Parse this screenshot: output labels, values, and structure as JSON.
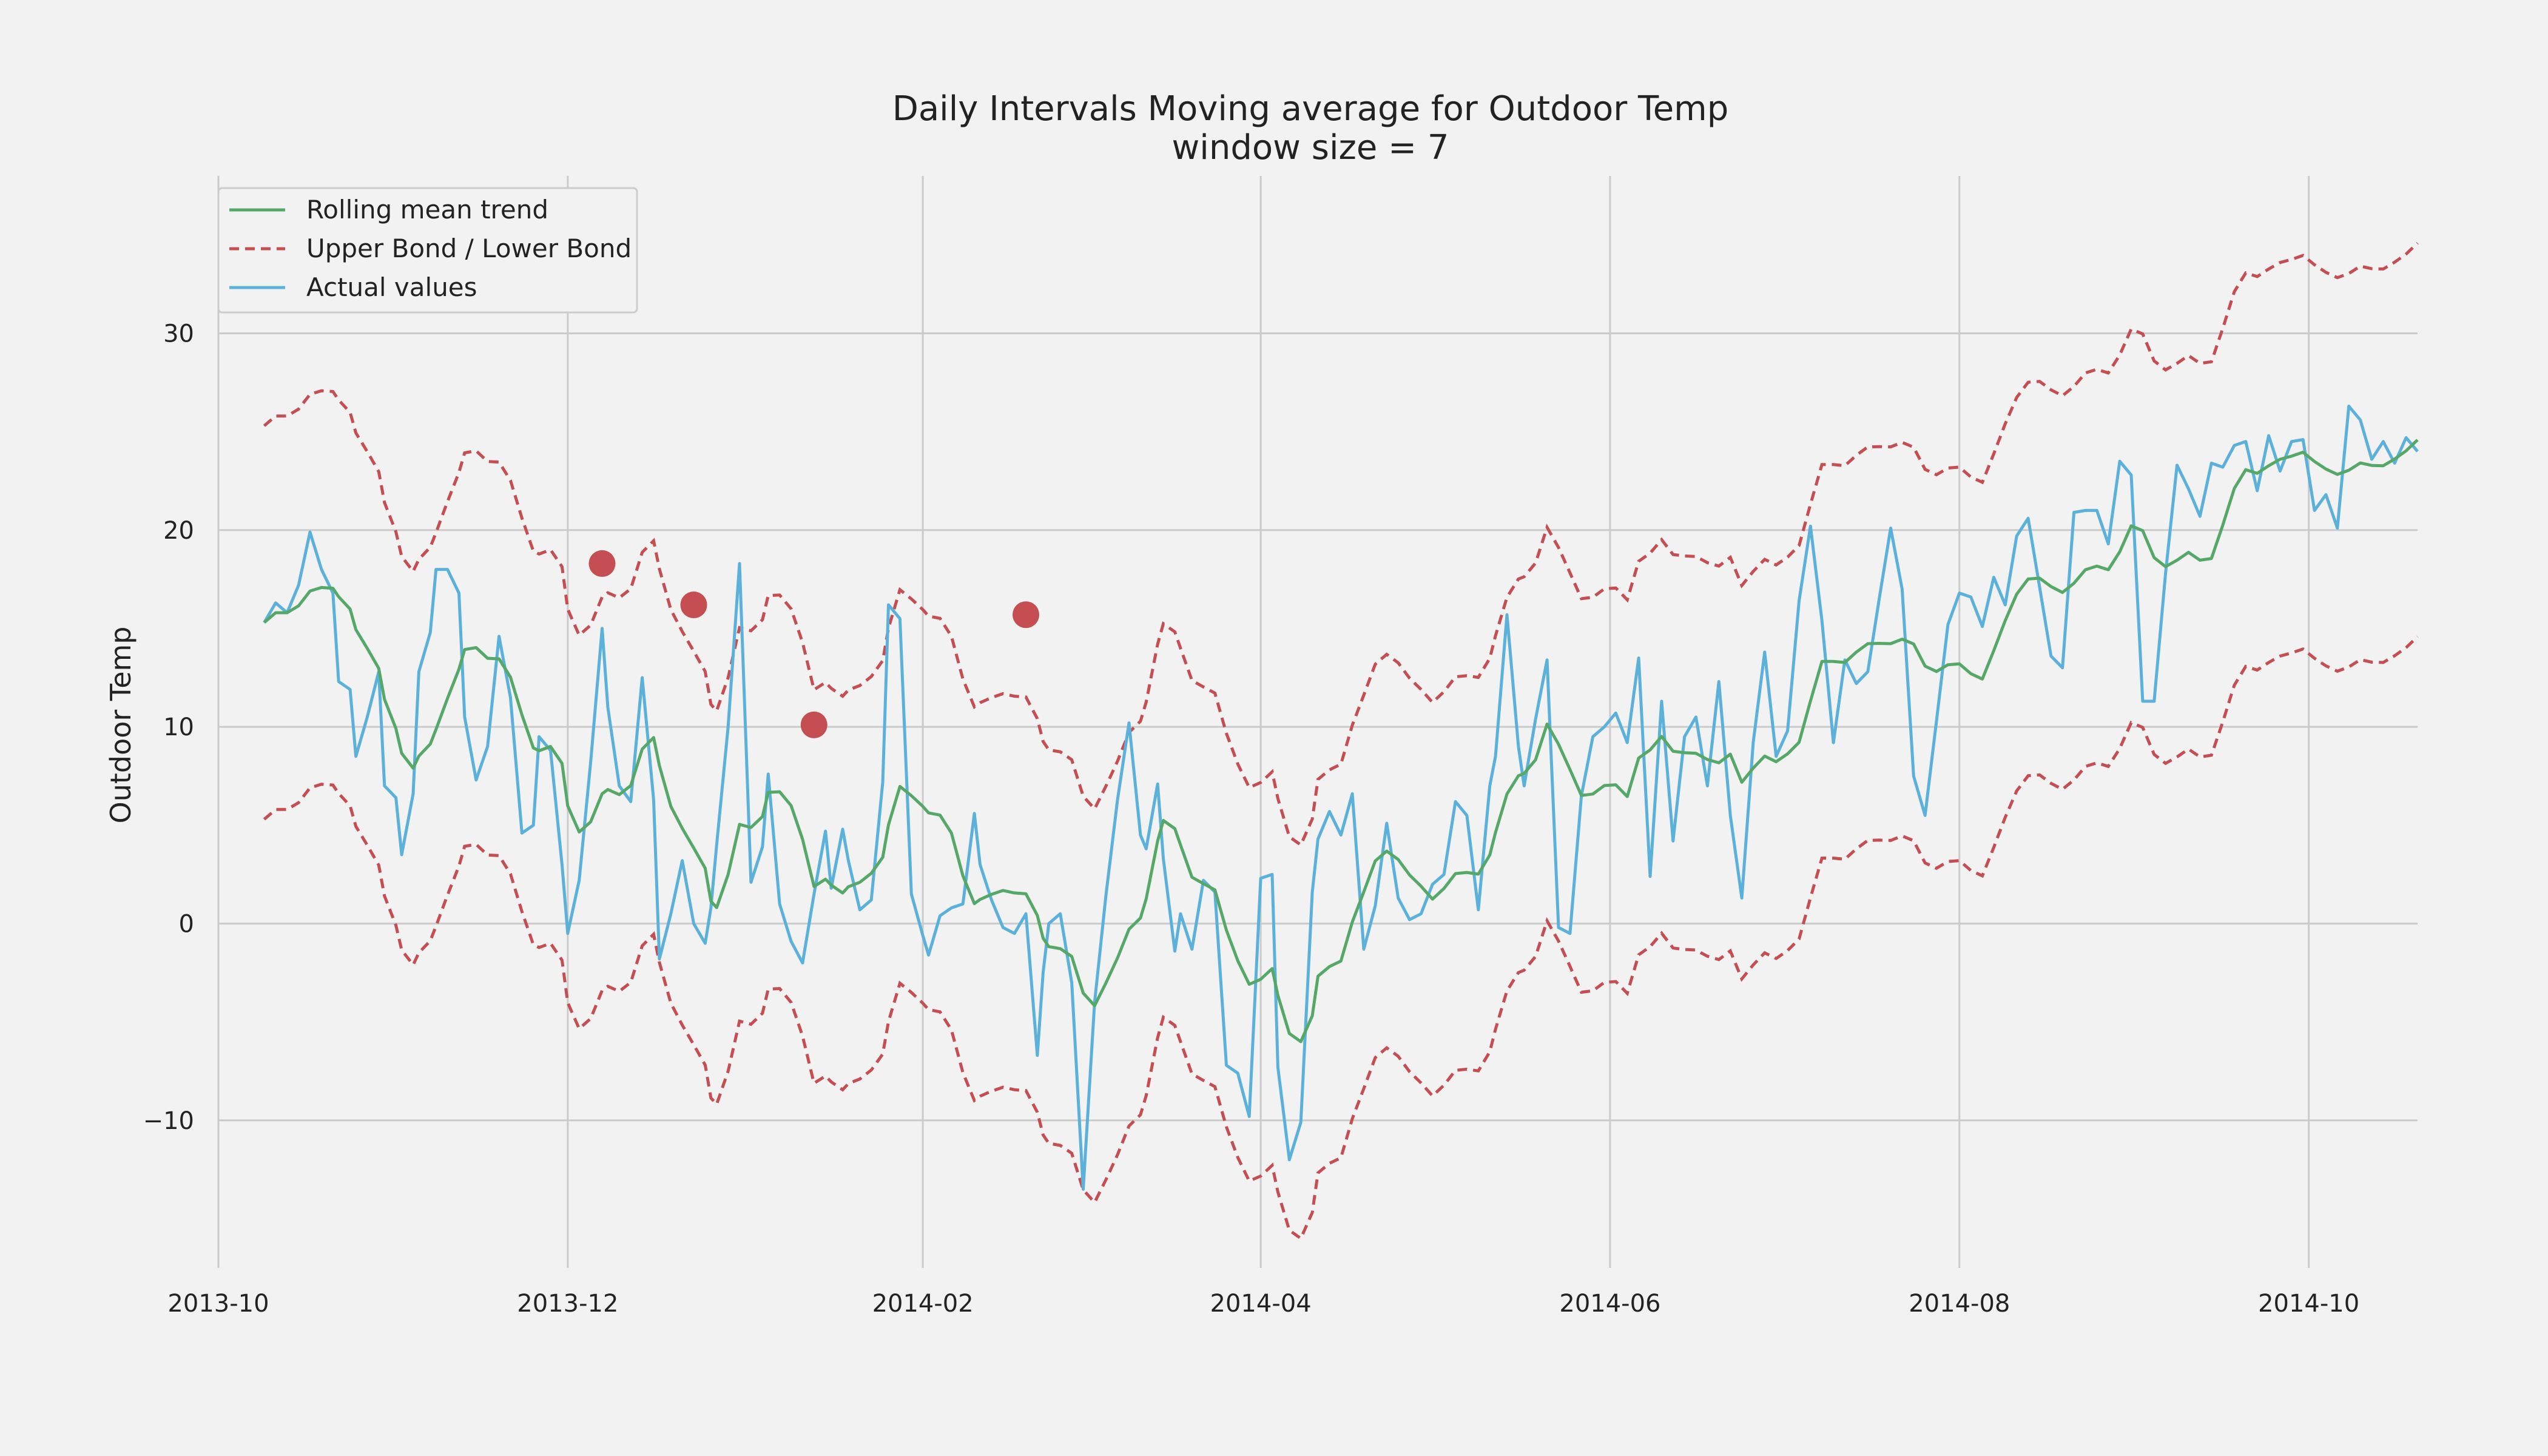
{
  "chart_data": {
    "type": "line",
    "title": [
      "Daily Intervals Moving average for Outdoor Temp",
      "window size = 7"
    ],
    "xlabel": "",
    "ylabel": "Outdoor Temp",
    "xlim": [
      "2013-10-01",
      "2014-10-20"
    ],
    "ylim": [
      -17.5,
      38
    ],
    "x_ticks": [
      "2013-10",
      "2013-12",
      "2014-02",
      "2014-04",
      "2014-06",
      "2014-08",
      "2014-10"
    ],
    "y_ticks": [
      -10,
      0,
      10,
      20,
      30
    ],
    "y_tick_labels": [
      "−10",
      "0",
      "10",
      "20",
      "30"
    ],
    "grid": true,
    "legend": {
      "placement": "top-left",
      "entries": [
        "Rolling mean trend",
        "Upper Bond / Lower Bond",
        "Actual values"
      ]
    },
    "colors": {
      "rolling": "#55a868",
      "bounds": "#c44e52",
      "actual": "#5bb1d9",
      "anomaly": "#c44e52",
      "background": "#f2f2f2",
      "grid": "#cbcbcb"
    },
    "series": [
      {
        "name": "Actual values",
        "style": "solid",
        "points": [
          [
            "2013-10-09",
            15.3
          ],
          [
            "2013-10-11",
            16.3
          ],
          [
            "2013-10-13",
            15.8
          ],
          [
            "2013-10-15",
            17.2
          ],
          [
            "2013-10-17",
            19.9
          ],
          [
            "2013-10-19",
            18.0
          ],
          [
            "2013-10-21",
            16.8
          ],
          [
            "2013-10-22",
            12.3
          ],
          [
            "2013-10-24",
            11.9
          ],
          [
            "2013-10-25",
            8.5
          ],
          [
            "2013-10-27",
            10.5
          ],
          [
            "2013-10-29",
            12.8
          ],
          [
            "2013-10-30",
            7.0
          ],
          [
            "2013-11-01",
            6.4
          ],
          [
            "2013-11-02",
            3.5
          ],
          [
            "2013-11-04",
            6.6
          ],
          [
            "2013-11-05",
            12.8
          ],
          [
            "2013-11-07",
            14.8
          ],
          [
            "2013-11-08",
            18.0
          ],
          [
            "2013-11-10",
            18.0
          ],
          [
            "2013-11-12",
            16.8
          ],
          [
            "2013-11-13",
            10.5
          ],
          [
            "2013-11-15",
            7.3
          ],
          [
            "2013-11-17",
            9.0
          ],
          [
            "2013-11-19",
            14.6
          ],
          [
            "2013-11-21",
            11.5
          ],
          [
            "2013-11-23",
            4.6
          ],
          [
            "2013-11-25",
            5.0
          ],
          [
            "2013-11-26",
            9.5
          ],
          [
            "2013-11-28",
            8.8
          ],
          [
            "2013-11-30",
            3.0
          ],
          [
            "2013-12-01",
            -0.5
          ],
          [
            "2013-12-03",
            2.2
          ],
          [
            "2013-12-05",
            8.2
          ],
          [
            "2013-12-07",
            15.0
          ],
          [
            "2013-12-08",
            11.0
          ],
          [
            "2013-12-10",
            7.0
          ],
          [
            "2013-12-12",
            6.2
          ],
          [
            "2013-12-14",
            12.5
          ],
          [
            "2013-12-16",
            6.3
          ],
          [
            "2013-12-17",
            -1.8
          ],
          [
            "2013-12-19",
            0.5
          ],
          [
            "2013-12-21",
            3.2
          ],
          [
            "2013-12-23",
            0.0
          ],
          [
            "2013-12-25",
            -1.0
          ],
          [
            "2013-12-26",
            0.8
          ],
          [
            "2013-12-27",
            4.0
          ],
          [
            "2013-12-29",
            10.0
          ],
          [
            "2013-12-31",
            18.3
          ],
          [
            "2014-01-02",
            2.1
          ],
          [
            "2014-01-04",
            3.9
          ],
          [
            "2014-01-05",
            7.6
          ],
          [
            "2014-01-07",
            1.0
          ],
          [
            "2014-01-09",
            -0.9
          ],
          [
            "2014-01-11",
            -2.0
          ],
          [
            "2014-01-13",
            1.5
          ],
          [
            "2014-01-15",
            4.7
          ],
          [
            "2014-01-16",
            1.8
          ],
          [
            "2014-01-18",
            4.8
          ],
          [
            "2014-01-19",
            3.2
          ],
          [
            "2014-01-21",
            0.7
          ],
          [
            "2014-01-23",
            1.2
          ],
          [
            "2014-01-25",
            7.2
          ],
          [
            "2014-01-26",
            16.2
          ],
          [
            "2014-01-28",
            15.5
          ],
          [
            "2014-01-30",
            1.5
          ],
          [
            "2014-02-01",
            -0.6
          ],
          [
            "2014-02-02",
            -1.6
          ],
          [
            "2014-02-04",
            0.4
          ],
          [
            "2014-02-06",
            0.8
          ],
          [
            "2014-02-08",
            1.0
          ],
          [
            "2014-02-10",
            5.6
          ],
          [
            "2014-02-11",
            3.0
          ],
          [
            "2014-02-13",
            1.2
          ],
          [
            "2014-02-15",
            -0.2
          ],
          [
            "2014-02-17",
            -0.5
          ],
          [
            "2014-02-19",
            0.5
          ],
          [
            "2014-02-21",
            -6.7
          ],
          [
            "2014-02-22",
            -2.5
          ],
          [
            "2014-02-23",
            0.0
          ],
          [
            "2014-02-25",
            0.5
          ],
          [
            "2014-02-27",
            -3.0
          ],
          [
            "2014-03-01",
            -13.5
          ],
          [
            "2014-03-03",
            -4.0
          ],
          [
            "2014-03-05",
            1.5
          ],
          [
            "2014-03-07",
            6.3
          ],
          [
            "2014-03-09",
            10.2
          ],
          [
            "2014-03-11",
            4.5
          ],
          [
            "2014-03-12",
            3.8
          ],
          [
            "2014-03-14",
            7.1
          ],
          [
            "2014-03-15",
            3.3
          ],
          [
            "2014-03-17",
            -1.4
          ],
          [
            "2014-03-18",
            0.5
          ],
          [
            "2014-03-20",
            -1.3
          ],
          [
            "2014-03-22",
            2.2
          ],
          [
            "2014-03-24",
            1.6
          ],
          [
            "2014-03-26",
            -7.2
          ],
          [
            "2014-03-28",
            -7.6
          ],
          [
            "2014-03-30",
            -9.8
          ],
          [
            "2014-04-01",
            2.3
          ],
          [
            "2014-04-03",
            2.5
          ],
          [
            "2014-04-04",
            -7.3
          ],
          [
            "2014-04-06",
            -12.0
          ],
          [
            "2014-04-08",
            -10.1
          ],
          [
            "2014-04-10",
            1.6
          ],
          [
            "2014-04-11",
            4.3
          ],
          [
            "2014-04-13",
            5.7
          ],
          [
            "2014-04-15",
            4.5
          ],
          [
            "2014-04-17",
            6.6
          ],
          [
            "2014-04-19",
            -1.3
          ],
          [
            "2014-04-21",
            0.9
          ],
          [
            "2014-04-23",
            5.1
          ],
          [
            "2014-04-25",
            1.3
          ],
          [
            "2014-04-27",
            0.2
          ],
          [
            "2014-04-29",
            0.5
          ],
          [
            "2014-05-01",
            2.0
          ],
          [
            "2014-05-03",
            2.5
          ],
          [
            "2014-05-05",
            6.2
          ],
          [
            "2014-05-07",
            5.5
          ],
          [
            "2014-05-09",
            0.7
          ],
          [
            "2014-05-11",
            7.0
          ],
          [
            "2014-05-12",
            8.5
          ],
          [
            "2014-05-14",
            15.7
          ],
          [
            "2014-05-16",
            9.0
          ],
          [
            "2014-05-17",
            7.0
          ],
          [
            "2014-05-19",
            10.4
          ],
          [
            "2014-05-21",
            13.4
          ],
          [
            "2014-05-23",
            -0.2
          ],
          [
            "2014-05-25",
            -0.5
          ],
          [
            "2014-05-27",
            6.5
          ],
          [
            "2014-05-29",
            9.5
          ],
          [
            "2014-05-31",
            10.0
          ],
          [
            "2014-06-02",
            10.7
          ],
          [
            "2014-06-04",
            9.2
          ],
          [
            "2014-06-06",
            13.5
          ],
          [
            "2014-06-08",
            2.4
          ],
          [
            "2014-06-10",
            11.3
          ],
          [
            "2014-06-12",
            4.2
          ],
          [
            "2014-06-14",
            9.5
          ],
          [
            "2014-06-16",
            10.5
          ],
          [
            "2014-06-18",
            7.0
          ],
          [
            "2014-06-20",
            12.3
          ],
          [
            "2014-06-22",
            5.5
          ],
          [
            "2014-06-24",
            1.3
          ],
          [
            "2014-06-26",
            9.2
          ],
          [
            "2014-06-28",
            13.8
          ],
          [
            "2014-06-30",
            8.5
          ],
          [
            "2014-07-02",
            9.8
          ],
          [
            "2014-07-04",
            16.4
          ],
          [
            "2014-07-06",
            20.2
          ],
          [
            "2014-07-08",
            15.4
          ],
          [
            "2014-07-10",
            9.2
          ],
          [
            "2014-07-12",
            13.4
          ],
          [
            "2014-07-14",
            12.2
          ],
          [
            "2014-07-16",
            12.8
          ],
          [
            "2014-07-18",
            16.5
          ],
          [
            "2014-07-20",
            20.1
          ],
          [
            "2014-07-22",
            17.0
          ],
          [
            "2014-07-24",
            7.5
          ],
          [
            "2014-07-26",
            5.5
          ],
          [
            "2014-07-28",
            10.3
          ],
          [
            "2014-07-30",
            15.2
          ],
          [
            "2014-08-01",
            16.8
          ],
          [
            "2014-08-03",
            16.6
          ],
          [
            "2014-08-05",
            15.1
          ],
          [
            "2014-08-07",
            17.6
          ],
          [
            "2014-08-09",
            16.2
          ],
          [
            "2014-08-11",
            19.7
          ],
          [
            "2014-08-13",
            20.6
          ],
          [
            "2014-08-15",
            17.1
          ],
          [
            "2014-08-17",
            13.6
          ],
          [
            "2014-08-19",
            13.0
          ],
          [
            "2014-08-21",
            20.9
          ],
          [
            "2014-08-23",
            21.0
          ],
          [
            "2014-08-25",
            21.0
          ],
          [
            "2014-08-27",
            19.3
          ],
          [
            "2014-08-29",
            23.5
          ],
          [
            "2014-08-31",
            22.8
          ],
          [
            "2014-09-02",
            11.3
          ],
          [
            "2014-09-04",
            11.3
          ],
          [
            "2014-09-06",
            17.8
          ],
          [
            "2014-09-08",
            23.3
          ],
          [
            "2014-09-10",
            22.1
          ],
          [
            "2014-09-12",
            20.7
          ],
          [
            "2014-09-14",
            23.4
          ],
          [
            "2014-09-16",
            23.2
          ],
          [
            "2014-09-18",
            24.3
          ],
          [
            "2014-09-20",
            24.5
          ],
          [
            "2014-09-22",
            22.0
          ],
          [
            "2014-09-24",
            24.8
          ],
          [
            "2014-09-26",
            23.0
          ],
          [
            "2014-09-28",
            24.5
          ],
          [
            "2014-09-30",
            24.6
          ],
          [
            "2014-10-02",
            21.0
          ],
          [
            "2014-10-04",
            21.8
          ],
          [
            "2014-10-06",
            20.1
          ],
          [
            "2014-10-08",
            26.3
          ],
          [
            "2014-10-10",
            25.6
          ],
          [
            "2014-10-12",
            23.6
          ],
          [
            "2014-10-14",
            24.5
          ],
          [
            "2014-10-16",
            23.4
          ],
          [
            "2014-10-18",
            24.7
          ],
          [
            "2014-10-20",
            24.0
          ]
        ]
      }
    ],
    "anomalies": [
      {
        "x": "2013-12-07",
        "y": 18.3
      },
      {
        "x": "2013-12-23",
        "y": 16.2
      },
      {
        "x": "2014-01-13",
        "y": 10.1
      },
      {
        "x": "2014-02-19",
        "y": 15.7
      }
    ]
  }
}
